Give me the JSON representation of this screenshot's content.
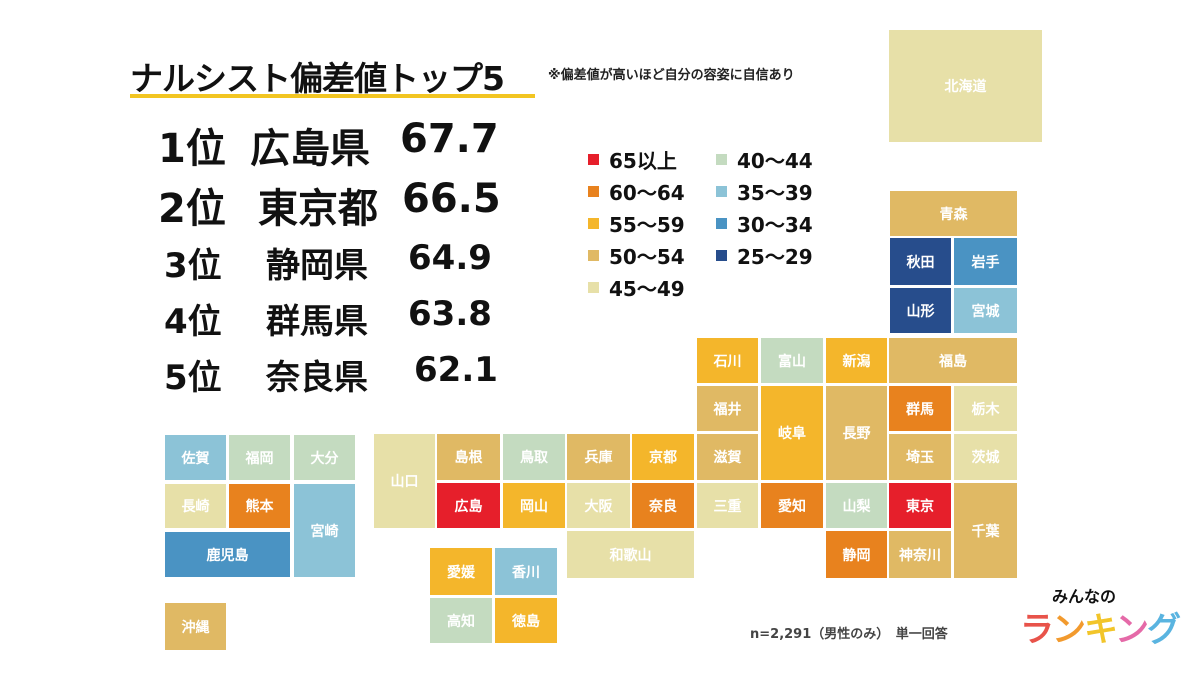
{
  "header": {
    "title": "ナルシスト偏差値トップ5",
    "note": "※偏差値が高いほど自分の容姿に自信あり"
  },
  "ranking": [
    {
      "rank": "1位",
      "prefecture": "広島県",
      "score": "67.7"
    },
    {
      "rank": "2位",
      "prefecture": "東京都",
      "score": "66.5"
    },
    {
      "rank": "3位",
      "prefecture": "静岡県",
      "score": "64.9"
    },
    {
      "rank": "4位",
      "prefecture": "群馬県",
      "score": "63.8"
    },
    {
      "rank": "5位",
      "prefecture": "奈良県",
      "score": "62.1"
    }
  ],
  "legend": [
    {
      "label": "65以上",
      "color": "#e61f2b"
    },
    {
      "label": "60～64",
      "color": "#e8821e"
    },
    {
      "label": "55～59",
      "color": "#f4b62b"
    },
    {
      "label": "50～54",
      "color": "#e0b964"
    },
    {
      "label": "45～49",
      "color": "#e7e0a8"
    },
    {
      "label": "40～44",
      "color": "#c4dbc0"
    },
    {
      "label": "35～39",
      "color": "#8cc3d7"
    },
    {
      "label": "30～34",
      "color": "#4a93c3"
    },
    {
      "label": "25～29",
      "color": "#274d8c"
    }
  ],
  "tiles": [
    {
      "name": "北海道",
      "bin": 4
    },
    {
      "name": "青森",
      "bin": 3
    },
    {
      "name": "秋田",
      "bin": 8
    },
    {
      "name": "岩手",
      "bin": 7
    },
    {
      "name": "山形",
      "bin": 8
    },
    {
      "name": "宮城",
      "bin": 6
    },
    {
      "name": "石川",
      "bin": 2
    },
    {
      "name": "富山",
      "bin": 5
    },
    {
      "name": "新潟",
      "bin": 2
    },
    {
      "name": "福島",
      "bin": 3
    },
    {
      "name": "福井",
      "bin": 3
    },
    {
      "name": "岐阜",
      "bin": 2
    },
    {
      "name": "長野",
      "bin": 3
    },
    {
      "name": "群馬",
      "bin": 1
    },
    {
      "name": "栃木",
      "bin": 4
    },
    {
      "name": "山口",
      "bin": 4
    },
    {
      "name": "島根",
      "bin": 3
    },
    {
      "name": "鳥取",
      "bin": 5
    },
    {
      "name": "兵庫",
      "bin": 3
    },
    {
      "name": "京都",
      "bin": 2
    },
    {
      "name": "滋賀",
      "bin": 3
    },
    {
      "name": "埼玉",
      "bin": 3
    },
    {
      "name": "茨城",
      "bin": 4
    },
    {
      "name": "広島",
      "bin": 0
    },
    {
      "name": "岡山",
      "bin": 2
    },
    {
      "name": "大阪",
      "bin": 4
    },
    {
      "name": "奈良",
      "bin": 1
    },
    {
      "name": "三重",
      "bin": 4
    },
    {
      "name": "愛知",
      "bin": 1
    },
    {
      "name": "山梨",
      "bin": 5
    },
    {
      "name": "東京",
      "bin": 0
    },
    {
      "name": "千葉",
      "bin": 3
    },
    {
      "name": "和歌山",
      "bin": 4
    },
    {
      "name": "静岡",
      "bin": 1
    },
    {
      "name": "神奈川",
      "bin": 3
    },
    {
      "name": "愛媛",
      "bin": 2
    },
    {
      "name": "香川",
      "bin": 6
    },
    {
      "name": "高知",
      "bin": 5
    },
    {
      "name": "徳島",
      "bin": 2
    },
    {
      "name": "佐賀",
      "bin": 6
    },
    {
      "name": "福岡",
      "bin": 5
    },
    {
      "name": "大分",
      "bin": 5
    },
    {
      "name": "長崎",
      "bin": 4
    },
    {
      "name": "熊本",
      "bin": 1
    },
    {
      "name": "宮崎",
      "bin": 6
    },
    {
      "name": "鹿児島",
      "bin": 7
    },
    {
      "name": "沖縄",
      "bin": 3
    }
  ],
  "footnote": "n=2,291（男性のみ）　単一回答",
  "logo": {
    "top": "みんなの",
    "main": "ランキング"
  }
}
